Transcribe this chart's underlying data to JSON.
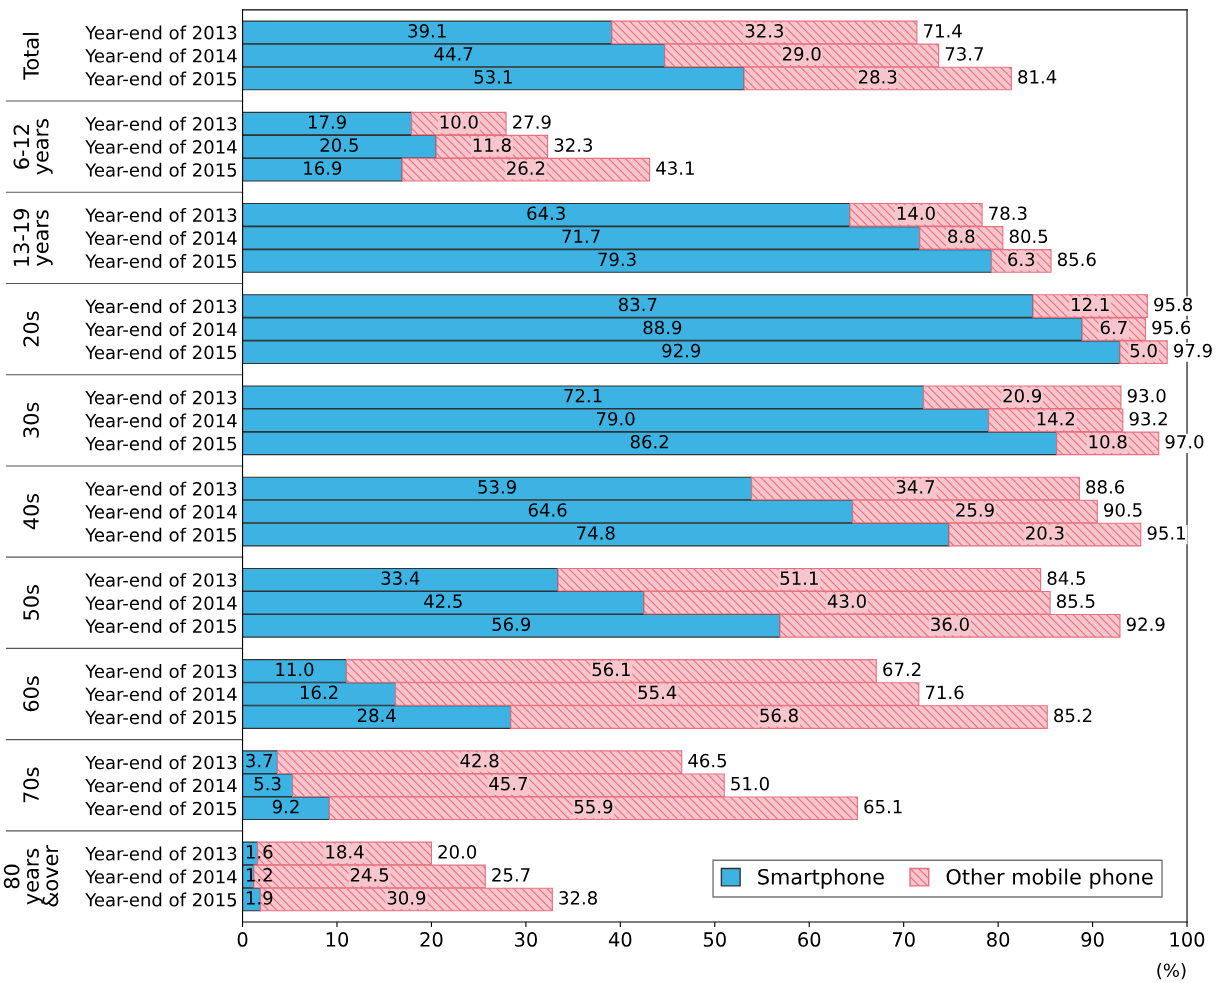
{
  "chart_data": {
    "type": "bar",
    "orientation": "horizontal",
    "stacked": true,
    "legend": "bottom right",
    "grid": false,
    "xlabel": "(%)",
    "xlim": [
      0,
      100
    ],
    "xticks": [
      0,
      10,
      20,
      30,
      40,
      50,
      60,
      70,
      80,
      90,
      100
    ],
    "annotations": [
      "Total",
      "6-12\nyears",
      "13-19\nyears",
      "20s",
      "30s",
      "40s",
      "50s",
      "60s",
      "70s",
      "80\nyears\n&over"
    ],
    "categories": [
      "Year-end of 2013",
      "Year-end of 2014",
      "Year-end of 2015",
      "Year-end of 2013",
      "Year-end of 2014",
      "Year-end of 2015",
      "Year-end of 2013",
      "Year-end of 2014",
      "Year-end of 2015",
      "Year-end of 2013",
      "Year-end of 2014",
      "Year-end of 2015",
      "Year-end of 2013",
      "Year-end of 2014",
      "Year-end of 2015",
      "Year-end of 2013",
      "Year-end of 2014",
      "Year-end of 2015",
      "Year-end of 2013",
      "Year-end of 2014",
      "Year-end of 2015",
      "Year-end of 2013",
      "Year-end of 2014",
      "Year-end of 2015",
      "Year-end of 2013",
      "Year-end of 2014",
      "Year-end of 2015",
      "Year-end of 2013",
      "Year-end of 2014",
      "Year-end of 2015"
    ],
    "series": [
      {
        "name": "Smartphone",
        "color": "#3db3e3",
        "values": [
          39.1,
          44.7,
          53.1,
          17.9,
          20.5,
          16.9,
          64.3,
          71.7,
          79.3,
          83.7,
          88.9,
          92.9,
          72.1,
          79.0,
          86.2,
          53.9,
          64.6,
          74.8,
          33.4,
          42.5,
          56.9,
          11.0,
          16.2,
          28.4,
          3.7,
          5.3,
          9.2,
          1.6,
          1.2,
          1.9
        ],
        "value_labels": [
          "39.1",
          "44.7",
          "53.1",
          "17.9",
          "20.5",
          "16.9",
          "64.3",
          "71.7",
          "79.3",
          "83.7",
          "88.9",
          "92.9",
          "72.1",
          "79.0",
          "86.2",
          "53.9",
          "64.6",
          "74.8",
          "33.4",
          "42.5",
          "56.9",
          "11.0",
          "16.2",
          "28.4",
          "3.7",
          "5.3",
          "9.2",
          "1.6",
          "1.2",
          "1.9"
        ]
      },
      {
        "name": "Other mobile phone",
        "color": "#e87080",
        "values": [
          32.3,
          29.0,
          28.3,
          10.0,
          11.8,
          26.2,
          14.0,
          8.8,
          6.3,
          12.1,
          6.7,
          5.0,
          20.9,
          14.2,
          10.8,
          34.7,
          25.9,
          20.3,
          51.1,
          43.0,
          36.0,
          56.1,
          55.4,
          56.8,
          42.8,
          45.7,
          55.9,
          18.4,
          24.5,
          30.9
        ],
        "value_labels": [
          "32.3",
          "29.0",
          "28.3",
          "10.0",
          "11.8",
          "26.2",
          "14.0",
          "8.8",
          "6.3",
          "12.1",
          "6.7",
          "5.0",
          "20.9",
          "14.2",
          "10.8",
          "34.7",
          "25.9",
          "20.3",
          "51.1",
          "43.0",
          "36.0",
          "56.1",
          "55.4",
          "56.8",
          "42.8",
          "45.7",
          "55.9",
          "18.4",
          "24.5",
          "30.9"
        ]
      }
    ],
    "totals": [
      "71.4",
      "73.7",
      "81.4",
      "27.9",
      "32.3",
      "43.1",
      "78.3",
      "80.5",
      "85.6",
      "95.8",
      "95.6",
      "97.9",
      "93.0",
      "93.2",
      "97.0",
      "88.6",
      "90.5",
      "95.1",
      "84.5",
      "85.5",
      "92.9",
      "67.2",
      "71.6",
      "85.2",
      "46.5",
      "51.0",
      "65.1",
      "20.0",
      "25.7",
      "32.8"
    ]
  }
}
